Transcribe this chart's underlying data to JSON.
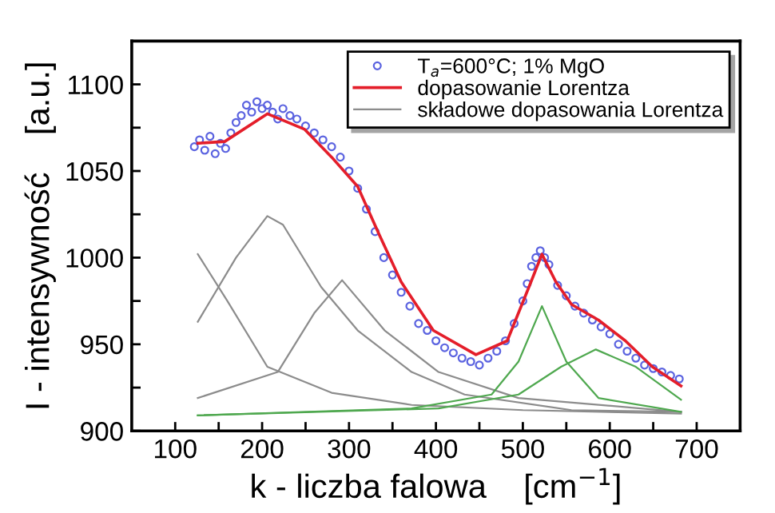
{
  "chart_data": {
    "type": "line",
    "xlabel": "k - liczba falowa    [cm$^{−1}$]",
    "ylabel": "I - intensywność    [a.u.]",
    "xlim": [
      50,
      750
    ],
    "ylim": [
      900,
      1125
    ],
    "xticks": [
      100,
      {
        "value": 150,
        "label": null
      },
      200,
      {
        "value": 250,
        "label": null
      },
      300,
      {
        "value": 350,
        "label": null
      },
      400,
      {
        "value": 450,
        "label": null
      },
      500,
      {
        "value": 550,
        "label": null
      },
      600,
      {
        "value": 650,
        "label": null
      },
      700
    ],
    "yticks": [
      900,
      {
        "value": 925,
        "label": null
      },
      950,
      {
        "value": 975,
        "label": null
      },
      1000,
      {
        "value": 1025,
        "label": null
      },
      1050,
      {
        "value": 1075,
        "label": null
      },
      1100
    ],
    "grid": false,
    "legend": "top right",
    "series": [
      {
        "name": "T$_{a}$=600°C; 1% MgO",
        "type": "scatter",
        "marker": "circle",
        "color": "#5b63e0",
        "x": [
          122,
          128,
          134,
          140,
          146,
          152,
          158,
          164,
          170,
          176,
          182,
          188,
          194,
          200,
          206,
          212,
          218,
          224,
          232,
          240,
          250,
          260,
          270,
          280,
          290,
          300,
          310,
          320,
          330,
          340,
          350,
          360,
          370,
          380,
          390,
          400,
          410,
          420,
          430,
          440,
          450,
          460,
          470,
          480,
          490,
          500,
          505,
          510,
          515,
          520,
          525,
          530,
          540,
          550,
          560,
          570,
          580,
          590,
          600,
          610,
          620,
          630,
          640,
          650,
          660,
          670,
          680
        ],
        "values": [
          1064,
          1068,
          1062,
          1070,
          1060,
          1066,
          1063,
          1072,
          1078,
          1082,
          1088,
          1084,
          1090,
          1086,
          1088,
          1084,
          1080,
          1086,
          1082,
          1080,
          1076,
          1072,
          1068,
          1064,
          1058,
          1050,
          1040,
          1028,
          1015,
          1000,
          990,
          980,
          972,
          962,
          958,
          952,
          948,
          945,
          942,
          940,
          938,
          942,
          946,
          952,
          962,
          975,
          985,
          995,
          1000,
          1004,
          1000,
          996,
          984,
          978,
          972,
          968,
          964,
          960,
          956,
          950,
          946,
          942,
          938,
          936,
          934,
          932,
          930
        ]
      },
      {
        "name": "dopasowanie Lorentza",
        "color": "#e41e2a",
        "x": [
          126,
          157,
          206,
          249,
          280,
          310,
          335,
          360,
          397,
          446,
          482,
          507,
          522,
          538,
          556,
          587,
          618,
          649,
          682
        ],
        "values": [
          1066,
          1067,
          1083,
          1074,
          1058,
          1041,
          1013,
          986,
          958,
          944,
          952,
          983,
          1002,
          986,
          973,
          964,
          952,
          937,
          926
        ]
      },
      {
        "name": "składowe dopasowania Lorentza",
        "color": "#8c8c8c",
        "x": [
          126,
          160,
          206,
          280,
          372,
          500,
          682
        ],
        "values": [
          1002,
          975,
          937,
          922,
          915,
          912,
          910
        ]
      },
      {
        "type": "line",
        "color": "#8c8c8c",
        "x": [
          126,
          170,
          206,
          224,
          268,
          310,
          372,
          433,
          556,
          682
        ],
        "values": [
          963,
          1000,
          1024,
          1019,
          983,
          958,
          934,
          921,
          912,
          911
        ]
      },
      {
        "type": "line",
        "color": "#8c8c8c",
        "x": [
          126,
          218,
          260,
          292,
          341,
          403,
          495,
          682
        ],
        "values": [
          919,
          934,
          968,
          987,
          958,
          934,
          919,
          911
        ]
      },
      {
        "type": "line",
        "color": "#4fa84f",
        "x": [
          126,
          372,
          464,
          495,
          522,
          550,
          587,
          682
        ],
        "values": [
          909,
          913,
          921,
          940,
          972,
          940,
          919,
          911
        ]
      },
      {
        "type": "line",
        "color": "#4fa84f",
        "x": [
          126,
          403,
          495,
          544,
          584,
          630,
          682
        ],
        "values": [
          909,
          913,
          921,
          937,
          947,
          937,
          918
        ]
      }
    ]
  }
}
